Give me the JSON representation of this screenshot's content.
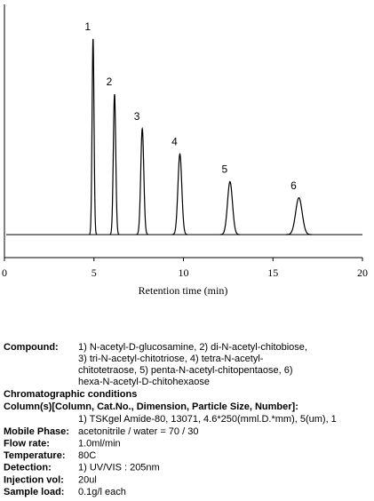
{
  "chart_data": {
    "type": "chromatogram",
    "x_label": "Retention time (min)",
    "xlim": [
      0,
      20
    ],
    "xticks": [
      0,
      5,
      10,
      15,
      20
    ],
    "ylim": [
      -10,
      100
    ],
    "x": [
      4.95,
      6.15,
      7.7,
      9.8,
      12.6,
      16.45
    ],
    "values": [
      85,
      61,
      46,
      35,
      23,
      16
    ],
    "peak_labels": [
      "1",
      "2",
      "3",
      "4",
      "5",
      "6"
    ],
    "color": "#000000"
  },
  "conditions": {
    "compound": {
      "label": "Compound:",
      "lines": [
        "1) N-acetyl-D-glucosamine, 2) di-N-acetyl-chitobiose,",
        "3) tri-N-acetyl-chitotriose, 4) tetra-N-acetyl-",
        "chitotetraose, 5) penta-N-acetyl-chitopentaose, 6)",
        "hexa-N-acetyl-D-chitohexaose"
      ]
    },
    "heading": "Chromatographic conditions",
    "column": {
      "label": "Column(s)[Column, Cat.No., Dimension, Particle Size, Number]:",
      "value": "1) TSKgel Amide-80, 13071, 4.6*250(mml.D.*mm), 5(um), 1"
    },
    "rows": [
      {
        "label": "Mobile Phase:",
        "value": "acetonitrile / water = 70 / 30"
      },
      {
        "label": "Flow rate:",
        "value": "1.0ml/min"
      },
      {
        "label": "Temperature:",
        "value": "80C"
      },
      {
        "label": "Detection:",
        "value": "1) UV/VIS : 205nm"
      },
      {
        "label": "Injection vol:",
        "value": "20ul"
      },
      {
        "label": "Sample load:",
        "value": "0.1g/l each"
      }
    ]
  }
}
